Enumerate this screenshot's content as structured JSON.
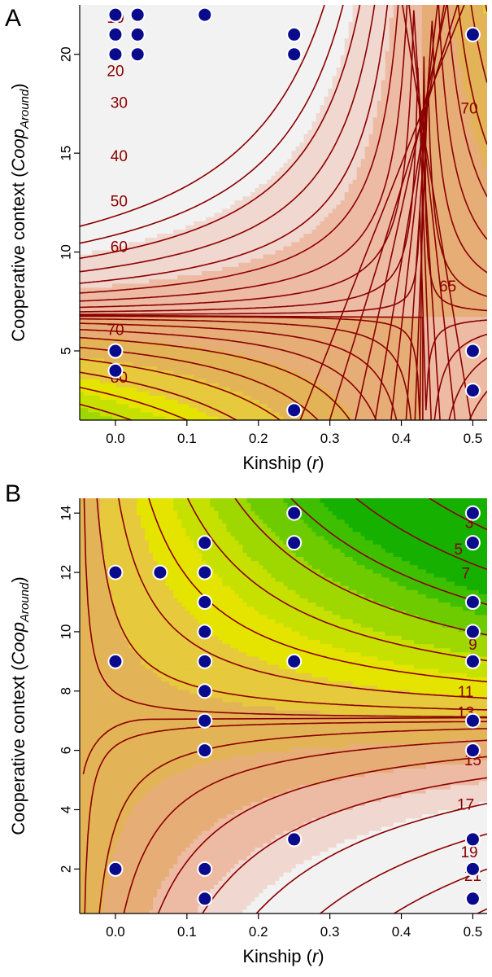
{
  "chart_data": [
    {
      "panel": "A",
      "type": "contour",
      "xlabel": "Kinship",
      "xlabel_var": "r",
      "ylabel": "Cooperative context",
      "ylabel_var": "Coop",
      "ylabel_subscript": "Around",
      "xlim": [
        -0.05,
        0.52
      ],
      "ylim": [
        1.5,
        22.5
      ],
      "xticks": [
        "0.0",
        "0.1",
        "0.2",
        "0.3",
        "0.4",
        "0.5"
      ],
      "xtick_values": [
        0,
        0.1,
        0.2,
        0.3,
        0.4,
        0.5
      ],
      "yticks": [
        "5",
        "10",
        "15",
        "20"
      ],
      "ytick_values": [
        5,
        10,
        15,
        20
      ],
      "contour_levels": [
        "10",
        "20",
        "30",
        "40",
        "50",
        "60",
        "65",
        "70",
        "70",
        "80"
      ],
      "fill_colors": [
        "#f2f2f2",
        "#f0d7cf",
        "#edbba4",
        "#e6ad77",
        "#e3b457",
        "#e6c93c",
        "#e4e400",
        "#c6e100",
        "#9fd700",
        "#6ecb00",
        "#3ebf00",
        "#16b000"
      ],
      "points": [
        {
          "x": 0.0,
          "y": 22
        },
        {
          "x": 0.031,
          "y": 22
        },
        {
          "x": 0.125,
          "y": 22
        },
        {
          "x": 0.0,
          "y": 21
        },
        {
          "x": 0.031,
          "y": 21
        },
        {
          "x": 0.25,
          "y": 21
        },
        {
          "x": 0.5,
          "y": 21
        },
        {
          "x": 0.0,
          "y": 20
        },
        {
          "x": 0.031,
          "y": 20
        },
        {
          "x": 0.25,
          "y": 20
        },
        {
          "x": 0.0,
          "y": 5
        },
        {
          "x": 0.5,
          "y": 5
        },
        {
          "x": 0.0,
          "y": 4
        },
        {
          "x": 0.5,
          "y": 3
        },
        {
          "x": 0.25,
          "y": 2
        }
      ]
    },
    {
      "panel": "B",
      "type": "contour",
      "xlabel": "Kinship",
      "xlabel_var": "r",
      "ylabel": "Cooperative context",
      "ylabel_var": "Coop",
      "ylabel_subscript": "Around",
      "xlim": [
        -0.05,
        0.52
      ],
      "ylim": [
        0.5,
        14.5
      ],
      "xticks": [
        "0.0",
        "0.1",
        "0.2",
        "0.3",
        "0.4",
        "0.5"
      ],
      "xtick_values": [
        0,
        0.1,
        0.2,
        0.3,
        0.4,
        0.5
      ],
      "yticks": [
        "2",
        "4",
        "6",
        "8",
        "10",
        "12",
        "14"
      ],
      "ytick_values": [
        2,
        4,
        6,
        8,
        10,
        12,
        14
      ],
      "contour_levels": [
        "3",
        "5",
        "7",
        "9",
        "11",
        "13",
        "15",
        "17",
        "19",
        "21"
      ],
      "fill_colors": [
        "#f2f2f2",
        "#f0d7cf",
        "#edbba4",
        "#e6ad77",
        "#e3b457",
        "#e6c93c",
        "#e4e400",
        "#c6e100",
        "#9fd700",
        "#6ecb00",
        "#3ebf00",
        "#16b000"
      ],
      "points": [
        {
          "x": 0.0,
          "y": 12
        },
        {
          "x": 0.0,
          "y": 9
        },
        {
          "x": 0.0,
          "y": 2
        },
        {
          "x": 0.0625,
          "y": 12
        },
        {
          "x": 0.125,
          "y": 13
        },
        {
          "x": 0.125,
          "y": 12
        },
        {
          "x": 0.125,
          "y": 11
        },
        {
          "x": 0.125,
          "y": 10
        },
        {
          "x": 0.125,
          "y": 9
        },
        {
          "x": 0.125,
          "y": 8
        },
        {
          "x": 0.125,
          "y": 7
        },
        {
          "x": 0.125,
          "y": 6
        },
        {
          "x": 0.125,
          "y": 2
        },
        {
          "x": 0.125,
          "y": 1
        },
        {
          "x": 0.25,
          "y": 14
        },
        {
          "x": 0.25,
          "y": 13
        },
        {
          "x": 0.25,
          "y": 9
        },
        {
          "x": 0.25,
          "y": 3
        },
        {
          "x": 0.5,
          "y": 14
        },
        {
          "x": 0.5,
          "y": 13
        },
        {
          "x": 0.5,
          "y": 11
        },
        {
          "x": 0.5,
          "y": 10
        },
        {
          "x": 0.5,
          "y": 9
        },
        {
          "x": 0.5,
          "y": 7
        },
        {
          "x": 0.5,
          "y": 6
        },
        {
          "x": 0.5,
          "y": 3
        },
        {
          "x": 0.5,
          "y": 2
        },
        {
          "x": 0.5,
          "y": 1
        }
      ]
    }
  ],
  "colors": {
    "point_fill": "#0a0a8c",
    "point_stroke": "#ffffff",
    "contour_line": "#8b0000"
  }
}
